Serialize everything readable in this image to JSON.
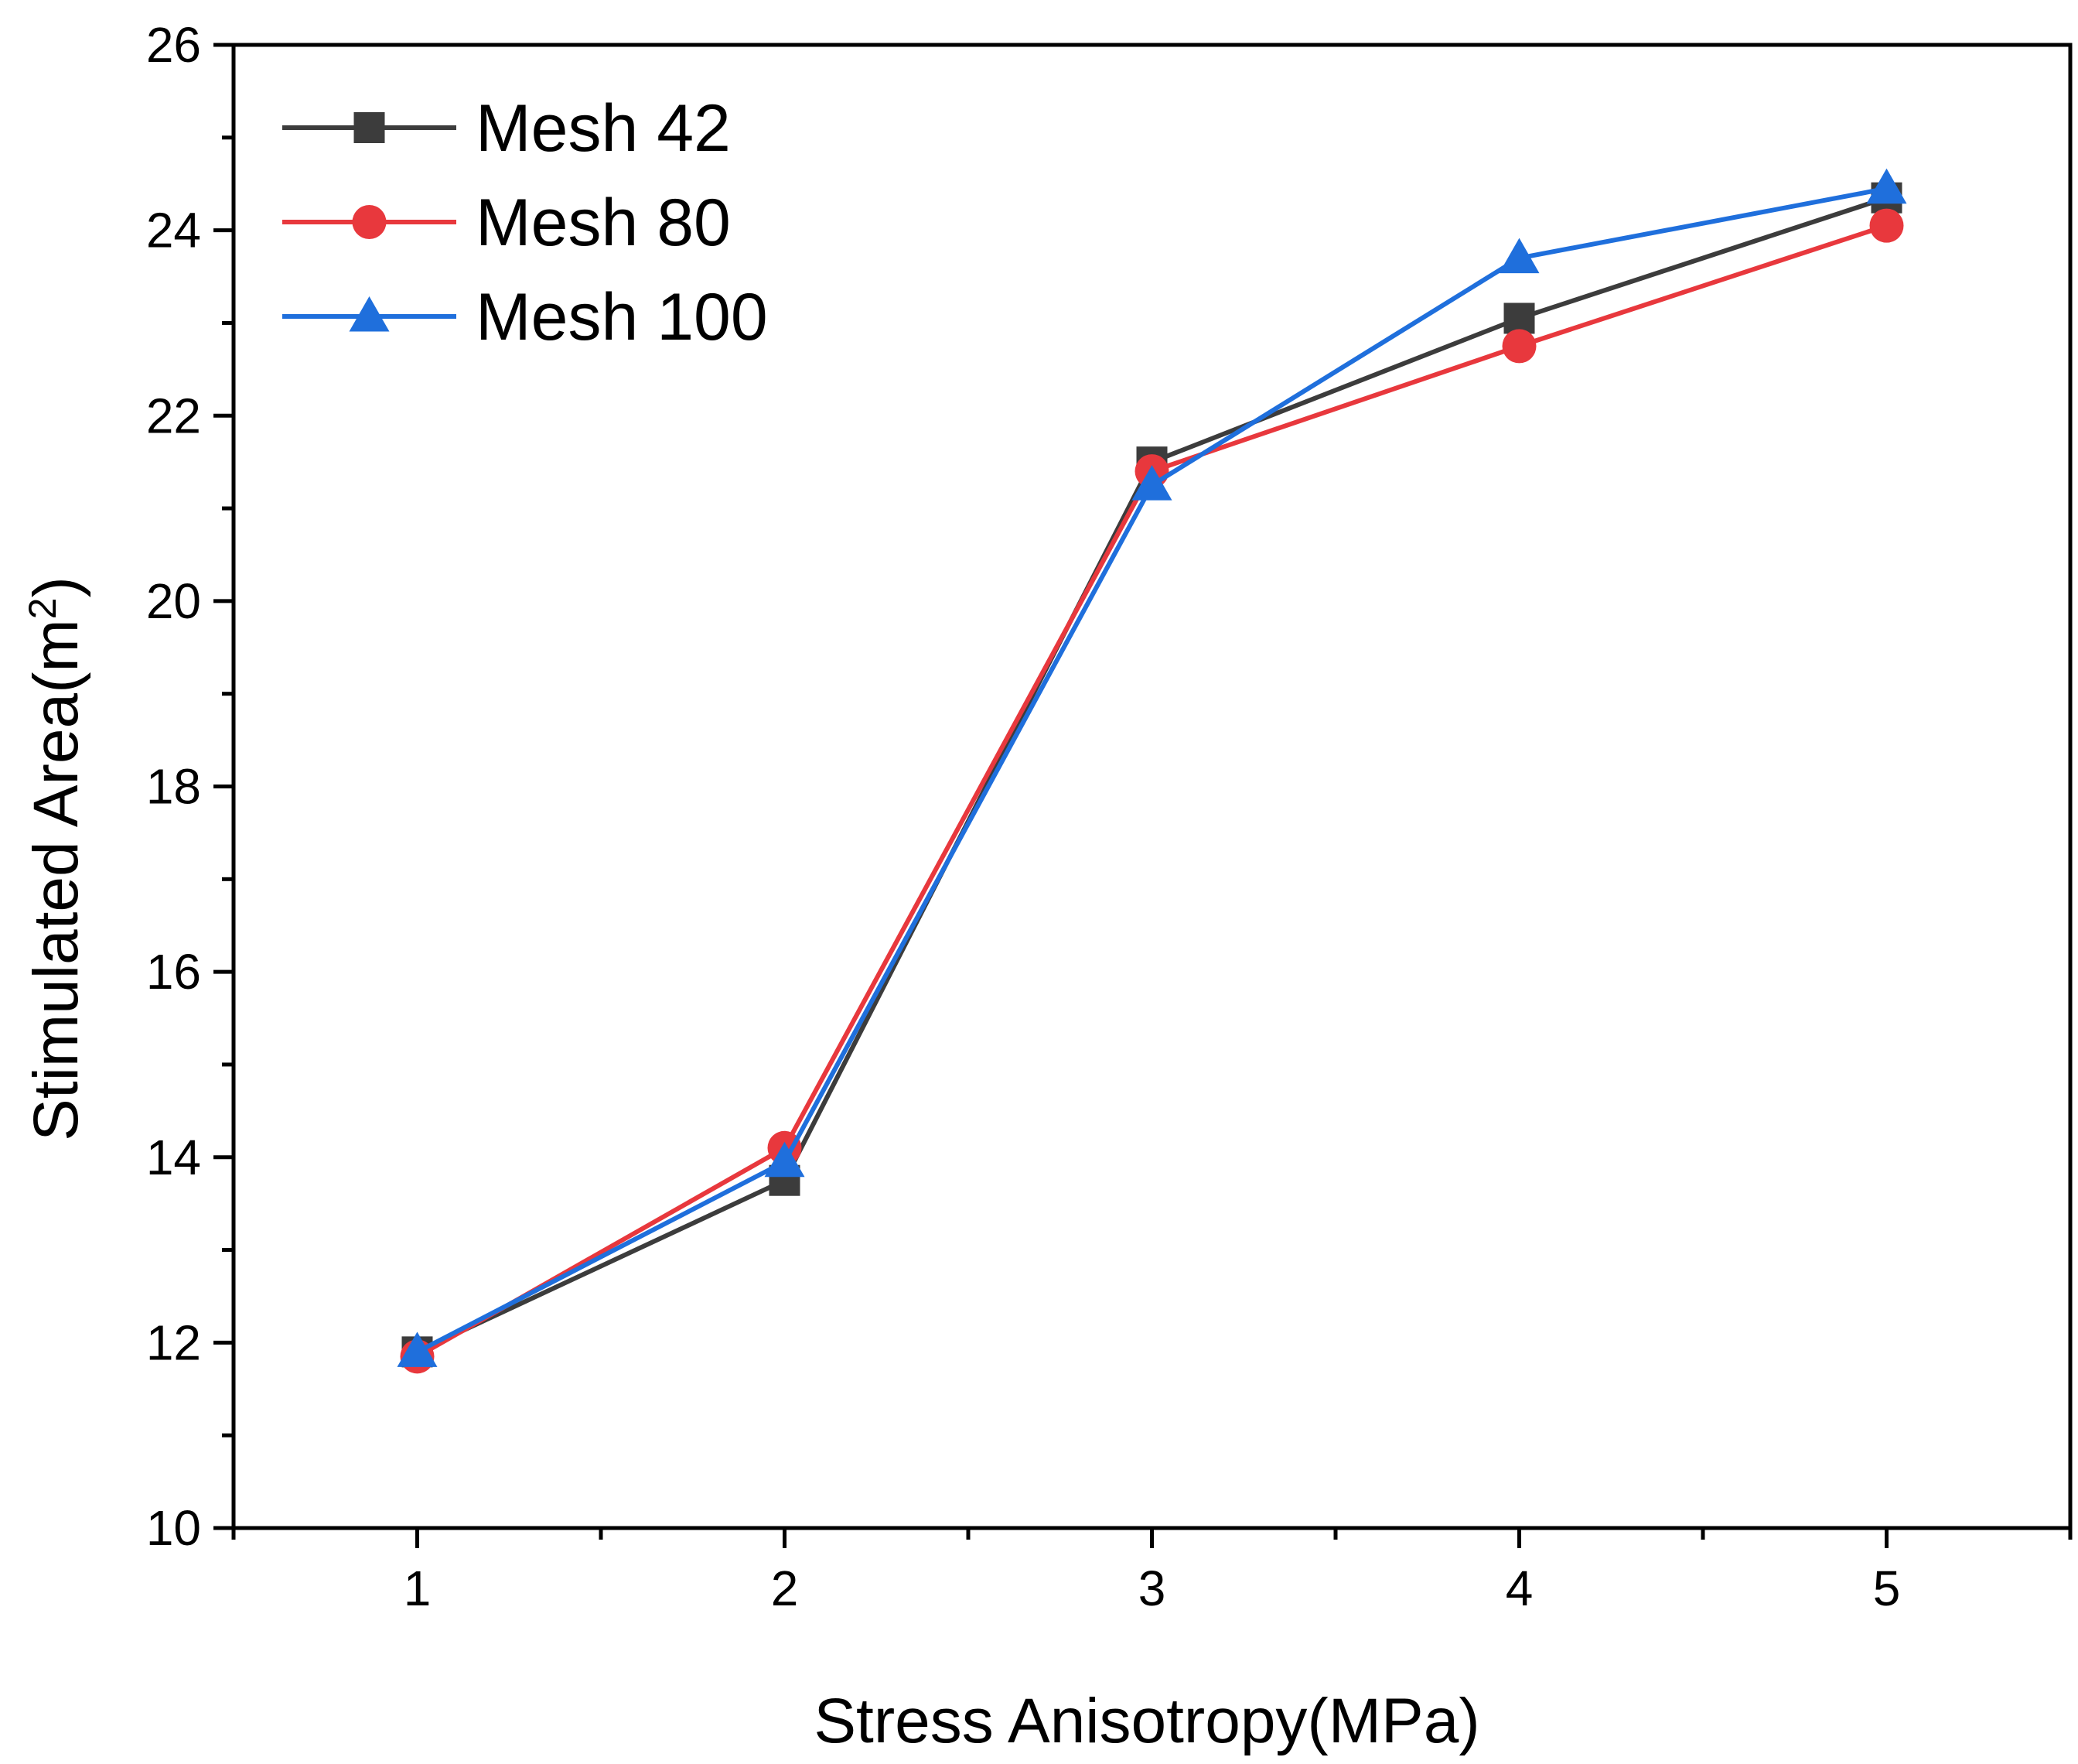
{
  "chart_data": {
    "type": "line",
    "xlabel": "Stress Anisotropy(MPa)",
    "ylabel_main": "Stimulated Area(m",
    "ylabel_sup": "2",
    "ylabel_end": ")",
    "xlim": [
      0.5,
      5.5
    ],
    "ylim": [
      10,
      26
    ],
    "xticks": [
      1,
      2,
      3,
      4,
      5
    ],
    "xtick_labels": [
      "1",
      "2",
      "3",
      "4",
      "5"
    ],
    "yticks": [
      10,
      12,
      14,
      16,
      18,
      20,
      22,
      24,
      26
    ],
    "ytick_labels": [
      "10",
      "12",
      "14",
      "16",
      "18",
      "20",
      "22",
      "24",
      "26"
    ],
    "x": [
      1,
      2,
      3,
      4,
      5
    ],
    "legend_position": "top-left",
    "grid": false,
    "series": [
      {
        "name": "Mesh 42",
        "marker": "square",
        "color": "#3c3c3c",
        "values": [
          11.9,
          13.75,
          21.5,
          23.05,
          24.35
        ]
      },
      {
        "name": "Mesh 80",
        "marker": "circle",
        "color": "#e8383d",
        "values": [
          11.85,
          14.1,
          21.4,
          22.75,
          24.05
        ]
      },
      {
        "name": "Mesh 100",
        "marker": "triangle",
        "color": "#1f6fdc",
        "values": [
          11.9,
          13.95,
          21.25,
          23.7,
          24.45
        ]
      }
    ]
  }
}
